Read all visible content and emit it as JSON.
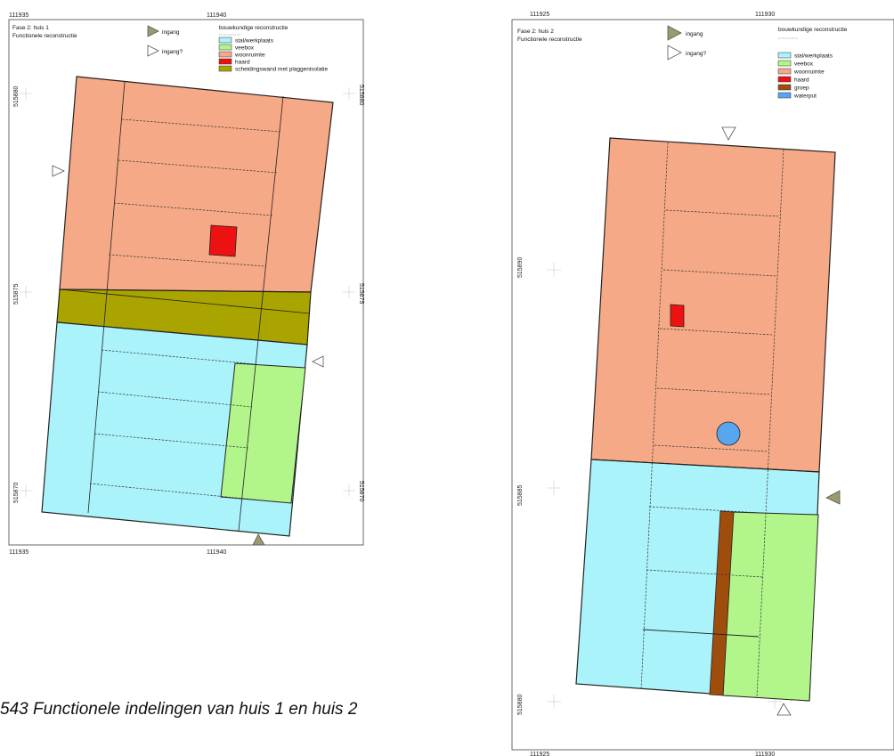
{
  "caption": "543 Functionele indelingen van huis 1 en huis 2",
  "colors": {
    "stal": "#aaf3fb",
    "veebox": "#b2f58a",
    "woon": "#f6a986",
    "haard": "#ee1111",
    "scheiding": "#aaa400",
    "groep": "#9e4d0c",
    "waterput": "#58a6f0"
  },
  "map1": {
    "title": "Fase 2: huis 1",
    "subtitle": "Functionele reconstructie",
    "legend_entrance": {
      "solid": "ingang",
      "open": "ingang?"
    },
    "legend_header": "bouwkundige reconstructie",
    "legend_items": [
      {
        "label": "stal/werkplaats",
        "color": "#aaf3fb"
      },
      {
        "label": "veebox",
        "color": "#b2f58a"
      },
      {
        "label": "woonruimte",
        "color": "#f6a986"
      },
      {
        "label": "haard",
        "color": "#ee1111"
      },
      {
        "label": "scheidingswand met plaggenisolatie",
        "color": "#aaa400"
      }
    ],
    "x_ticks": [
      "111935",
      "111940"
    ],
    "y_ticks": [
      "515880",
      "515875",
      "515870"
    ]
  },
  "map2": {
    "title": "Fase 2: huis 2",
    "subtitle": "Functionele reconstructie",
    "legend_entrance": {
      "solid": "ingang",
      "open": "ingang?"
    },
    "legend_header": "bouwkundige reconstructie",
    "legend_items": [
      {
        "label": "stal/werkplaats",
        "color": "#aaf3fb"
      },
      {
        "label": "veebox",
        "color": "#b2f58a"
      },
      {
        "label": "woonruimte",
        "color": "#f6a986"
      },
      {
        "label": "haard",
        "color": "#ee1111"
      },
      {
        "label": "groep",
        "color": "#9e4d0c"
      },
      {
        "label": "waterput",
        "color": "#58a6f0"
      }
    ],
    "x_ticks": [
      "111925",
      "111930"
    ],
    "y_ticks": [
      "515890",
      "515885",
      "515880"
    ]
  }
}
